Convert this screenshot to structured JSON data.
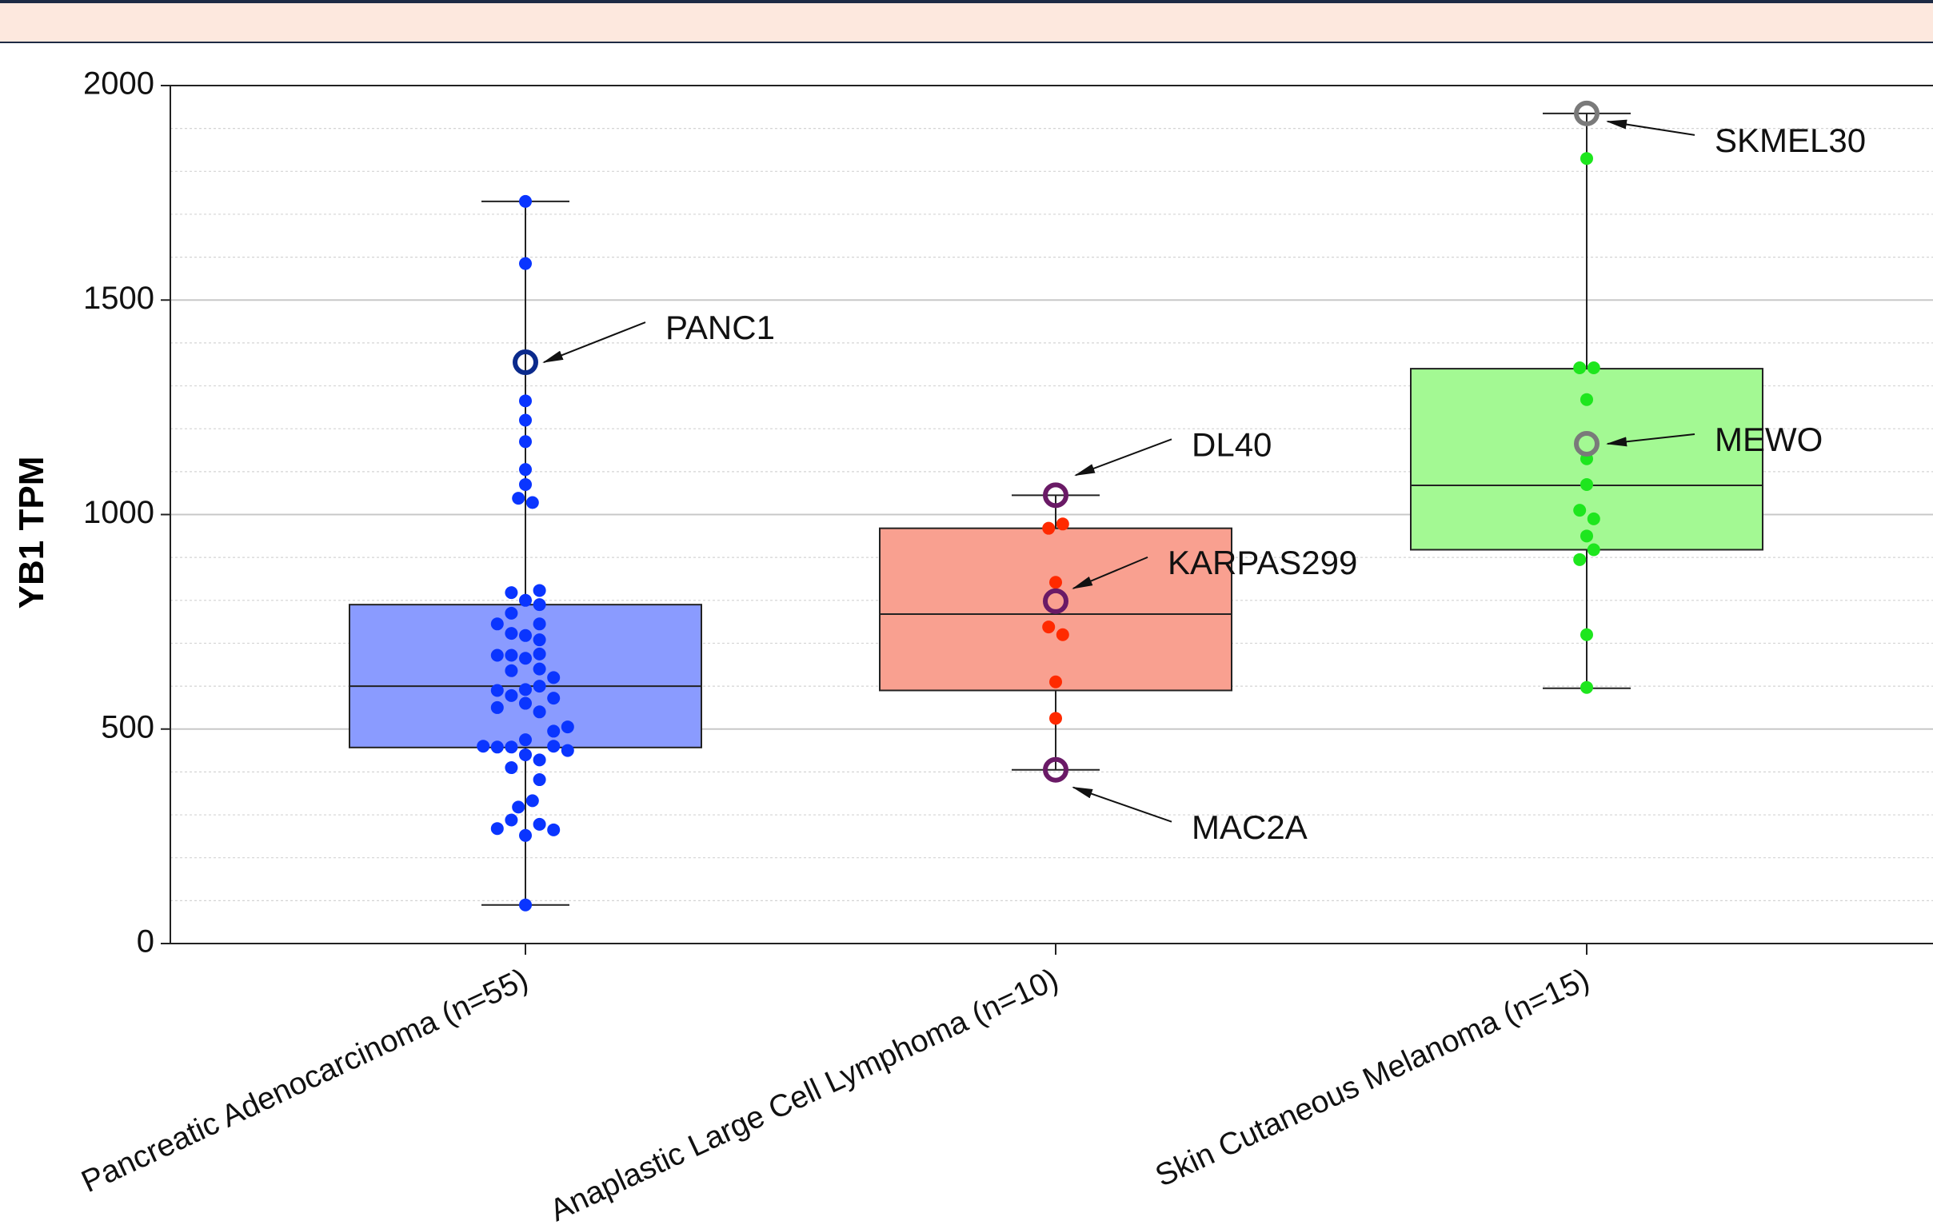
{
  "chart_data": {
    "type": "box",
    "ylabel": "YB1 TPM",
    "xlabel": "",
    "ylim": [
      0,
      2000
    ],
    "yticks": [
      0,
      500,
      1000,
      1500,
      2000
    ],
    "grid": true,
    "categories": [
      "Pancreatic Adenocarcinoma (n=55)",
      "Anaplastic Large Cell Lymphoma (n=10)",
      "Skin Cutaneous Melanoma (n=15)"
    ],
    "boxes": [
      {
        "category": "Pancreatic Adenocarcinoma (n=55)",
        "min": 90,
        "q1": 457,
        "median": 600,
        "q3": 790,
        "max": 1730,
        "color": "#8a9bff",
        "point_color": "#0a35ff",
        "highlight_color": "#0b2a8c"
      },
      {
        "category": "Anaplastic Large Cell Lymphoma (n=10)",
        "min": 405,
        "q1": 590,
        "median": 768,
        "q3": 968,
        "max": 1045,
        "color": "#f9a090",
        "point_color": "#ff2a00",
        "highlight_color": "#6a1a66"
      },
      {
        "category": "Skin Cutaneous Melanoma (n=15)",
        "min": 595,
        "q1": 918,
        "median": 1068,
        "q3": 1340,
        "max": 1935,
        "color": "#a3f993",
        "point_color": "#1ee61e",
        "highlight_color": "#7a7a7a"
      }
    ],
    "points": [
      [
        {
          "dx": 0,
          "y": 1730
        },
        {
          "dx": 0,
          "y": 1585
        },
        {
          "dx": 0,
          "y": 1265
        },
        {
          "dx": 0,
          "y": 1220
        },
        {
          "dx": 0,
          "y": 1170
        },
        {
          "dx": 0,
          "y": 1105
        },
        {
          "dx": 0,
          "y": 1070
        },
        {
          "dx": -0.08,
          "y": 1038
        },
        {
          "dx": 0.08,
          "y": 1028
        },
        {
          "dx": -0.16,
          "y": 818
        },
        {
          "dx": 0.16,
          "y": 823
        },
        {
          "dx": 0,
          "y": 800
        },
        {
          "dx": 0.16,
          "y": 790
        },
        {
          "dx": -0.16,
          "y": 770
        },
        {
          "dx": -0.32,
          "y": 745
        },
        {
          "dx": 0.16,
          "y": 745
        },
        {
          "dx": -0.16,
          "y": 723
        },
        {
          "dx": 0,
          "y": 718
        },
        {
          "dx": 0.16,
          "y": 708
        },
        {
          "dx": -0.32,
          "y": 672
        },
        {
          "dx": -0.16,
          "y": 672
        },
        {
          "dx": 0,
          "y": 665
        },
        {
          "dx": 0.16,
          "y": 675
        },
        {
          "dx": -0.16,
          "y": 636
        },
        {
          "dx": 0.16,
          "y": 640
        },
        {
          "dx": 0.32,
          "y": 620
        },
        {
          "dx": 0,
          "y": 592
        },
        {
          "dx": -0.32,
          "y": 590
        },
        {
          "dx": 0.16,
          "y": 600
        },
        {
          "dx": -0.16,
          "y": 578
        },
        {
          "dx": 0.32,
          "y": 572
        },
        {
          "dx": 0,
          "y": 560
        },
        {
          "dx": -0.32,
          "y": 550
        },
        {
          "dx": 0.16,
          "y": 540
        },
        {
          "dx": 0.48,
          "y": 505
        },
        {
          "dx": 0.32,
          "y": 495
        },
        {
          "dx": 0,
          "y": 475
        },
        {
          "dx": -0.48,
          "y": 460
        },
        {
          "dx": -0.32,
          "y": 458
        },
        {
          "dx": -0.16,
          "y": 458
        },
        {
          "dx": 0.32,
          "y": 460
        },
        {
          "dx": 0.48,
          "y": 450
        },
        {
          "dx": 0,
          "y": 440
        },
        {
          "dx": 0.16,
          "y": 428
        },
        {
          "dx": -0.16,
          "y": 410
        },
        {
          "dx": 0.16,
          "y": 382
        },
        {
          "dx": 0.08,
          "y": 333
        },
        {
          "dx": -0.08,
          "y": 318
        },
        {
          "dx": -0.16,
          "y": 288
        },
        {
          "dx": 0.16,
          "y": 278
        },
        {
          "dx": -0.32,
          "y": 268
        },
        {
          "dx": 0.32,
          "y": 265
        },
        {
          "dx": 0,
          "y": 252
        },
        {
          "dx": 0,
          "y": 90
        }
      ],
      [
        {
          "dx": 0.08,
          "y": 978
        },
        {
          "dx": -0.08,
          "y": 968
        },
        {
          "dx": 0,
          "y": 842
        },
        {
          "dx": -0.08,
          "y": 738
        },
        {
          "dx": 0.08,
          "y": 720
        },
        {
          "dx": 0,
          "y": 610
        },
        {
          "dx": 0,
          "y": 525
        }
      ],
      [
        {
          "dx": 0,
          "y": 1830
        },
        {
          "dx": -0.08,
          "y": 1342
        },
        {
          "dx": 0.08,
          "y": 1342
        },
        {
          "dx": 0,
          "y": 1268
        },
        {
          "dx": 0,
          "y": 1130
        },
        {
          "dx": 0,
          "y": 1070
        },
        {
          "dx": -0.08,
          "y": 1010
        },
        {
          "dx": 0.08,
          "y": 990
        },
        {
          "dx": 0,
          "y": 950
        },
        {
          "dx": 0.08,
          "y": 918
        },
        {
          "dx": -0.08,
          "y": 895
        },
        {
          "dx": 0,
          "y": 720
        },
        {
          "dx": 0,
          "y": 597
        }
      ]
    ],
    "annotations": [
      {
        "label": "PANC1",
        "group": 0,
        "y": 1355
      },
      {
        "label": "DL40",
        "group": 1,
        "y": 1045
      },
      {
        "label": "KARPAS299",
        "group": 1,
        "y": 798
      },
      {
        "label": "MAC2A",
        "group": 1,
        "y": 405
      },
      {
        "label": "SKMEL30",
        "group": 2,
        "y": 1935
      },
      {
        "label": "MEWO",
        "group": 2,
        "y": 1165
      }
    ]
  }
}
